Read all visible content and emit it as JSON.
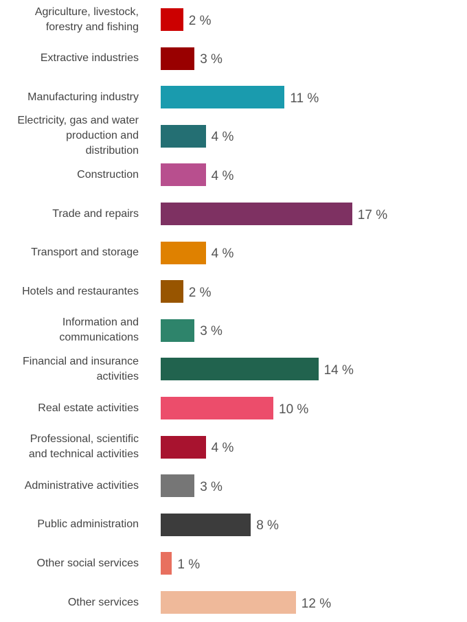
{
  "chart_data": {
    "type": "bar",
    "orientation": "horizontal",
    "value_suffix": " %",
    "categories": [
      [
        "Agriculture, livestock,",
        "forestry and fishing"
      ],
      [
        "Extractive industries"
      ],
      [
        "Manufacturing industry"
      ],
      [
        "Electricity, gas and water",
        "production and",
        "distribution"
      ],
      [
        "Construction"
      ],
      [
        "Trade and repairs"
      ],
      [
        "Transport and storage"
      ],
      [
        "Hotels and restaurantes"
      ],
      [
        "Information and",
        "communications"
      ],
      [
        "Financial and insurance",
        "activities"
      ],
      [
        "Real estate activities"
      ],
      [
        "Professional, scientific",
        "and technical activities"
      ],
      [
        "Administrative activities"
      ],
      [
        "Public administration"
      ],
      [
        "Other social services"
      ],
      [
        "Other services"
      ]
    ],
    "values": [
      2,
      3,
      11,
      4,
      4,
      17,
      4,
      2,
      3,
      14,
      10,
      4,
      3,
      8,
      1,
      12
    ],
    "colors": [
      "#cc0000",
      "#990000",
      "#1a9bae",
      "#246f73",
      "#b84f8e",
      "#7e3162",
      "#df8100",
      "#985500",
      "#2e846b",
      "#21634e",
      "#ec4d6b",
      "#a8132f",
      "#767676",
      "#3c3c3c",
      "#e8705f",
      "#efb99a"
    ],
    "title": "",
    "xlabel": "",
    "ylabel": "",
    "xlim": [
      0,
      17
    ]
  }
}
